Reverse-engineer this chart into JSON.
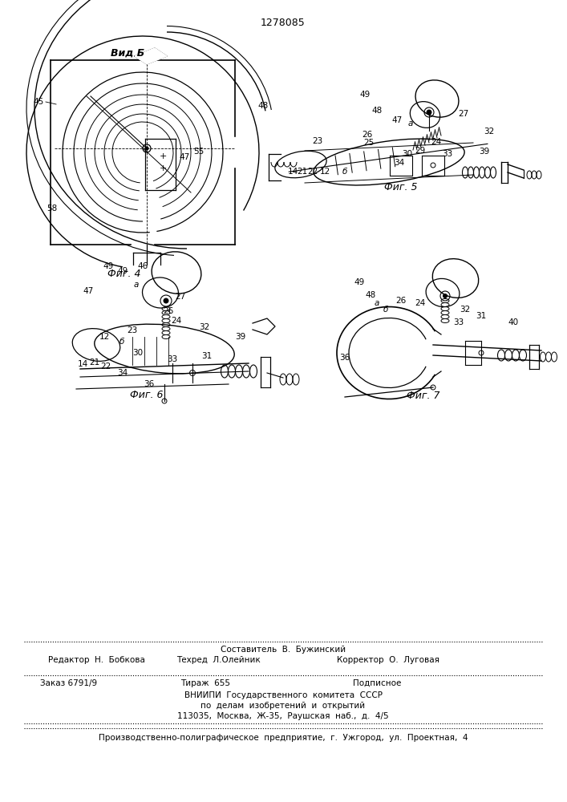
{
  "patent_number": "1278085",
  "background_color": "#ffffff",
  "line_color": "#000000",
  "fig_size": [
    7.07,
    10.0
  ],
  "dpi": 100,
  "footer": {
    "sostavitel": "Составитель  В.  Бужинский",
    "redaktor": "Редактор  Н.  Бобкова",
    "tekhred": "Техред  Л.Олейник",
    "korrektor": "Корректор  О.  Луговая",
    "zakaz": "Заказ 6791/9",
    "tirazh": "Тираж  655",
    "podpisnoe": "Подписное",
    "vniipи": "ВНИИПИ  Государственного  комитета  СССР",
    "po_delam": "по  делам  изобретений  и  открытий",
    "address": "113035,  Москва,  Ж-35,  Раушская  наб.,  д.  4/5",
    "typografia": "Производственно-полиграфическое  предприятие,  г.  Ужгород,  ул.  Проектная,  4"
  },
  "fig4_label": "Фиг. 4",
  "fig5_label": "Фиг. 5",
  "fig6_label": "Фиг. 6",
  "fig7_label": "Фиг. 7",
  "vid_b_label": "Вид Б"
}
